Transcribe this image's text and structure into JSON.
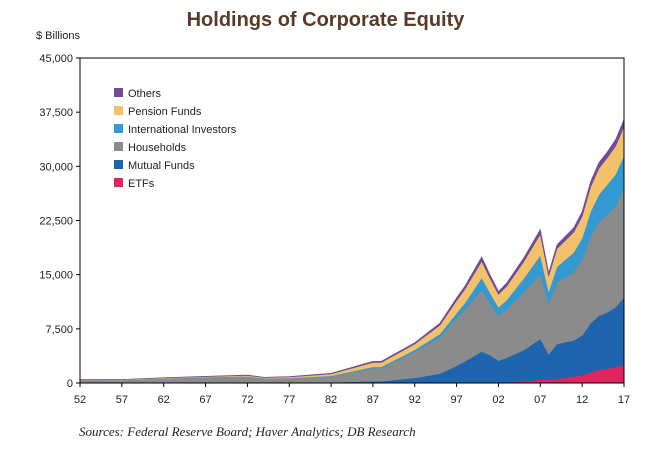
{
  "chart_data": {
    "type": "area",
    "title": "Holdings of Corporate Equity",
    "ylabel": "$ Billions",
    "xlabel": "",
    "source": "Sources:  Federal Reserve Board; Haver Analytics; DB Research",
    "xlim": [
      1952,
      2017
    ],
    "ylim": [
      0,
      45000
    ],
    "y_ticks": [
      {
        "value": 0,
        "label": "0"
      },
      {
        "value": 7500,
        "label": "7,500"
      },
      {
        "value": 15000,
        "label": "15,000"
      },
      {
        "value": 22500,
        "label": "22,500"
      },
      {
        "value": 30000,
        "label": "30,000"
      },
      {
        "value": 37500,
        "label": "37,500"
      },
      {
        "value": 45000,
        "label": "45,000"
      }
    ],
    "x_ticks": [
      {
        "value": 1952,
        "label": "52"
      },
      {
        "value": 1957,
        "label": "57"
      },
      {
        "value": 1962,
        "label": "62"
      },
      {
        "value": 1967,
        "label": "67"
      },
      {
        "value": 1972,
        "label": "72"
      },
      {
        "value": 1977,
        "label": "77"
      },
      {
        "value": 1982,
        "label": "82"
      },
      {
        "value": 1987,
        "label": "87"
      },
      {
        "value": 1992,
        "label": "92"
      },
      {
        "value": 1997,
        "label": "97"
      },
      {
        "value": 2002,
        "label": "02"
      },
      {
        "value": 2007,
        "label": "07"
      },
      {
        "value": 2012,
        "label": "12"
      },
      {
        "value": 2017,
        "label": "17"
      }
    ],
    "stacking": "stacked",
    "grid": false,
    "legend_position": "top-left",
    "legend_order": [
      "Others",
      "Pension Funds",
      "International Investors",
      "Households",
      "Mutual Funds",
      "ETFs"
    ],
    "x": [
      1952,
      1957,
      1962,
      1967,
      1972,
      1974,
      1977,
      1982,
      1987,
      1988,
      1992,
      1995,
      1997,
      1998,
      2000,
      2001,
      2002,
      2003,
      2005,
      2007,
      2008,
      2009,
      2011,
      2012,
      2013,
      2014,
      2015,
      2016,
      2017
    ],
    "series": [
      {
        "name": "ETFs",
        "color": "#e0245e",
        "values": [
          0,
          0,
          0,
          0,
          0,
          0,
          0,
          0,
          0,
          0,
          0,
          0,
          0,
          0,
          60,
          70,
          90,
          120,
          250,
          500,
          400,
          600,
          900,
          1100,
          1500,
          1800,
          2000,
          2200,
          2500
        ]
      },
      {
        "name": "Mutual Funds",
        "color": "#1e65ad",
        "values": [
          30,
          50,
          60,
          70,
          80,
          60,
          60,
          100,
          250,
          250,
          700,
          1300,
          2400,
          3000,
          4300,
          3800,
          3000,
          3400,
          4300,
          5600,
          3600,
          4800,
          5000,
          5500,
          6800,
          7500,
          7800,
          8300,
          9400
        ]
      },
      {
        "name": "Households",
        "color": "#8b8b8b",
        "values": [
          400,
          350,
          550,
          700,
          800,
          550,
          600,
          800,
          1800,
          1800,
          3600,
          5000,
          6600,
          7200,
          8500,
          7200,
          6200,
          6700,
          8000,
          9000,
          7000,
          8500,
          9500,
          10500,
          12000,
          13000,
          13500,
          14000,
          15000
        ]
      },
      {
        "name": "International Investors",
        "color": "#3399d1",
        "values": [
          20,
          20,
          30,
          40,
          50,
          40,
          50,
          100,
          200,
          200,
          300,
          500,
          700,
          900,
          1700,
          1400,
          1200,
          1300,
          1900,
          2600,
          1700,
          2200,
          2700,
          3000,
          3400,
          3800,
          4200,
          4400,
          4600
        ]
      },
      {
        "name": "Pension Funds",
        "color": "#f2c16a",
        "values": [
          30,
          40,
          60,
          80,
          120,
          100,
          120,
          250,
          600,
          600,
          800,
          1200,
          1700,
          1900,
          2300,
          2000,
          1800,
          1900,
          2300,
          2900,
          2100,
          2500,
          2800,
          3000,
          3400,
          3600,
          3700,
          3900,
          4000
        ]
      },
      {
        "name": "Others",
        "color": "#6e4c9b",
        "values": [
          20,
          20,
          30,
          40,
          60,
          40,
          50,
          100,
          150,
          150,
          200,
          300,
          400,
          450,
          600,
          500,
          400,
          450,
          550,
          650,
          450,
          550,
          600,
          650,
          750,
          800,
          800,
          900,
          1000
        ]
      }
    ]
  }
}
